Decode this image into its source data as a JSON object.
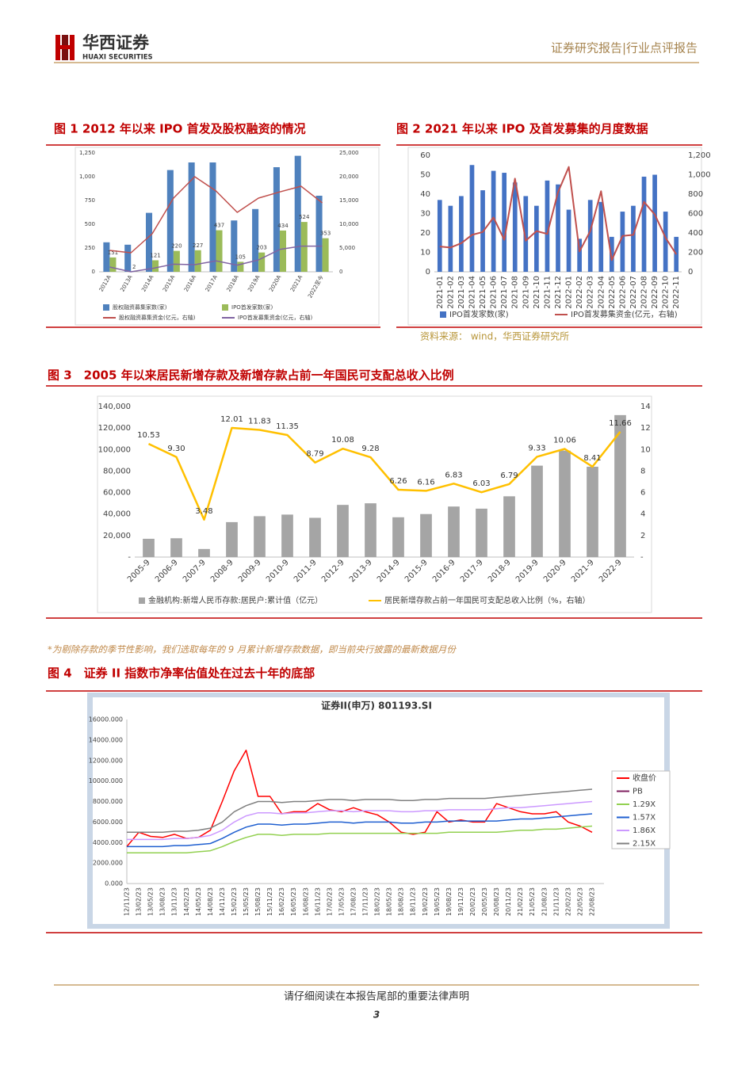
{
  "header": {
    "logo_cn": "华西证券",
    "logo_en": "HUAXI SECURITIES",
    "report_type": "证券研究报告|行业点评报告"
  },
  "chart_data": [
    {
      "type": "bar",
      "title": "图 1 2012 年以来 IPO 首发及股权融资的情况",
      "categories": [
        "2012A",
        "2013A",
        "2014A",
        "2015A",
        "2016A",
        "2017A",
        "2018A",
        "2019A",
        "2020A",
        "2021A",
        "2022至今"
      ],
      "series": [
        {
          "name": "股权融资募集家数(家)",
          "type": "bar",
          "color": "#4f81bd",
          "values": [
            310,
            285,
            620,
            1070,
            1150,
            1150,
            540,
            660,
            1100,
            1220,
            800
          ]
        },
        {
          "name": "IPO首发家数(家)",
          "type": "bar",
          "color": "#9bbb59",
          "data_labels": true,
          "values": [
            151,
            2,
            121,
            220,
            227,
            437,
            105,
            203,
            434,
            524,
            353
          ]
        },
        {
          "name": "股权融资募集资金(亿元，右轴)",
          "type": "line",
          "axis": "y2",
          "color": "#c0504d",
          "values": [
            4500,
            4000,
            8000,
            15500,
            20000,
            17000,
            12500,
            15500,
            16800,
            18000,
            14500
          ]
        },
        {
          "name": "IPO首发募集资金(亿元，右轴)",
          "type": "line",
          "axis": "y2",
          "color": "#8064a2",
          "values": [
            1000,
            0,
            700,
            1600,
            1500,
            2300,
            1400,
            2500,
            4700,
            5400,
            5400
          ]
        }
      ],
      "ylim": [
        0,
        1250
      ],
      "yticks": [
        0,
        250,
        500,
        750,
        {
          "value": 1000,
          "label": "1,000"
        },
        {
          "value": 1250,
          "label": "1,250"
        }
      ],
      "y2lim": [
        0,
        25000
      ],
      "y2ticks": [
        0,
        {
          "value": 5000,
          "label": "5,000"
        },
        {
          "value": 10000,
          "label": "10,000"
        },
        {
          "value": 15000,
          "label": "15,000"
        },
        {
          "value": 20000,
          "label": "20,000"
        },
        {
          "value": 25000,
          "label": "25,000"
        }
      ],
      "grid": false,
      "legend": "bottom"
    },
    {
      "type": "bar",
      "title": "图 2 2021 年以来 IPO 及首发募集的月度数据",
      "categories": [
        "2021-01",
        "2021-02",
        "2021-03",
        "2021-04",
        "2021-05",
        "2021-06",
        "2021-07",
        "2021-08",
        "2021-09",
        "2021-10",
        "2021-11",
        "2021-12",
        "2022-01",
        "2022-02",
        "2022-03",
        "2022-04",
        "2022-05",
        "2022-06",
        "2022-07",
        "2022-08",
        "2022-09",
        "2022-10",
        "2022-11"
      ],
      "series": [
        {
          "name": "IPO首发家数(家)",
          "type": "bar",
          "color": "#4472c4",
          "values": [
            37,
            34,
            39,
            55,
            42,
            52,
            51,
            46,
            39,
            34,
            47,
            45,
            32,
            17,
            37,
            36,
            18,
            31,
            34,
            49,
            50,
            31,
            18
          ]
        },
        {
          "name": "IPO首发募集资金(亿元，右轴)",
          "type": "line",
          "axis": "y2",
          "color": "#c0504d",
          "values": [
            260,
            250,
            295,
            380,
            410,
            560,
            330,
            960,
            320,
            420,
            390,
            820,
            1080,
            210,
            420,
            830,
            120,
            370,
            380,
            720,
            590,
            350,
            180
          ]
        }
      ],
      "ylim": [
        0,
        60
      ],
      "yticks": [
        0,
        10,
        20,
        30,
        40,
        50,
        60
      ],
      "y2lim": [
        0,
        1200
      ],
      "y2ticks": [
        0,
        200,
        400,
        600,
        800,
        {
          "value": 1000,
          "label": "1,000"
        },
        {
          "value": 1200,
          "label": "1,200"
        }
      ],
      "grid": false,
      "legend": "bottom"
    },
    {
      "type": "bar",
      "title": "图 3　2005 年以来居民新增存款及新增存款占前一年国民可支配总收入比例",
      "categories": [
        "2005-9",
        "2006-9",
        "2007-9",
        "2008-9",
        "2009-9",
        "2010-9",
        "2011-9",
        "2012-9",
        "2013-9",
        "2014-9",
        "2015-9",
        "2016-9",
        "2017-9",
        "2018-9",
        "2019-9",
        "2020-9",
        "2021-9",
        "2022-9"
      ],
      "series": [
        {
          "name": "金融机构:新增人民币存款:居民户:累计值（亿元）",
          "type": "bar",
          "color": "#a5a5a5",
          "values": [
            17000,
            17500,
            7500,
            32500,
            38000,
            39500,
            36500,
            48500,
            50000,
            37000,
            40000,
            47000,
            45000,
            56500,
            85000,
            99000,
            84000,
            132000
          ]
        },
        {
          "name": "居民新增存款占前一年国民可支配总收入比例（%，右轴）",
          "type": "line",
          "axis": "y2",
          "color": "#ffc000",
          "data_labels": true,
          "values": [
            10.53,
            9.3,
            3.48,
            12.01,
            11.83,
            11.35,
            8.79,
            10.08,
            9.28,
            6.26,
            6.16,
            6.83,
            6.03,
            6.79,
            9.33,
            10.06,
            8.41,
            11.66
          ],
          "value_labels": [
            "10.53",
            "9.30",
            "3.48",
            "12.01",
            "11.83",
            "11.35",
            "8.79",
            "10.08",
            "9.28",
            "6.26",
            "6.16",
            "6.83",
            "6.03",
            "6.79",
            "9.33",
            "10.06",
            "8.41",
            "11.66"
          ]
        }
      ],
      "ylim": [
        0,
        140000
      ],
      "yticks": [
        {
          "value": 0,
          "label": "-"
        },
        {
          "value": 20000,
          "label": "20,000"
        },
        {
          "value": 40000,
          "label": "40,000"
        },
        {
          "value": 60000,
          "label": "60,000"
        },
        {
          "value": 80000,
          "label": "80,000"
        },
        {
          "value": 100000,
          "label": "100,000"
        },
        {
          "value": 120000,
          "label": "120,000"
        },
        {
          "value": 140000,
          "label": "140,000"
        }
      ],
      "y2lim": [
        0,
        14
      ],
      "y2ticks": [
        {
          "value": 0,
          "label": "-"
        },
        2,
        4,
        6,
        8,
        10,
        12,
        14
      ],
      "grid": false,
      "legend": "bottom"
    },
    {
      "type": "line",
      "title": "图 4　证券 II 指数市净率估值处在过去十年的底部",
      "chart_title": "证券II(申万) 801193.SI",
      "categories": [
        "12/11/23",
        "13/02/23",
        "13/05/23",
        "13/08/23",
        "13/11/23",
        "14/02/23",
        "14/05/23",
        "14/08/23",
        "14/11/23",
        "15/02/23",
        "15/05/23",
        "15/08/23",
        "15/11/23",
        "16/02/23",
        "16/05/23",
        "16/08/23",
        "16/11/23",
        "17/02/23",
        "17/05/23",
        "17/08/23",
        "17/11/23",
        "18/02/23",
        "18/05/23",
        "18/08/23",
        "18/11/23",
        "19/02/23",
        "19/05/23",
        "19/08/23",
        "19/11/23",
        "20/02/23",
        "20/05/23",
        "20/08/23",
        "20/11/23",
        "21/02/23",
        "21/05/23",
        "21/08/23",
        "21/11/23",
        "22/02/23",
        "22/05/23",
        "22/08/23"
      ],
      "series": [
        {
          "name": "收盘价",
          "type": "line",
          "color": "#ff0000",
          "values": [
            3600,
            5000,
            4600,
            4500,
            4800,
            4400,
            4500,
            5200,
            8000,
            11000,
            13000,
            8500,
            8500,
            6800,
            7000,
            7000,
            7800,
            7200,
            7000,
            7400,
            7000,
            6700,
            6000,
            5000,
            4800,
            5000,
            7000,
            6000,
            6200,
            6000,
            6000,
            7800,
            7400,
            7000,
            6800,
            6800,
            7000,
            6000,
            5600,
            5000
          ]
        },
        {
          "name": "PB",
          "type": "line",
          "color": "#7f1f5f",
          "values": [
            null,
            null,
            null,
            null,
            null,
            null,
            null,
            null,
            null,
            null,
            null,
            null,
            null,
            null,
            null,
            null,
            null,
            null,
            null,
            null,
            null,
            null,
            null,
            null,
            null,
            null,
            null,
            null,
            null,
            null,
            null,
            null,
            null,
            null,
            null,
            null,
            null,
            null,
            null,
            null
          ]
        },
        {
          "name": "1.29X",
          "type": "line",
          "color": "#92d050",
          "values": [
            3000,
            3000,
            3000,
            3000,
            3000,
            3000,
            3100,
            3200,
            3600,
            4100,
            4500,
            4800,
            4800,
            4700,
            4800,
            4800,
            4800,
            4900,
            4900,
            4900,
            4900,
            4900,
            4900,
            4900,
            4900,
            4900,
            4900,
            5000,
            5000,
            5000,
            5000,
            5000,
            5100,
            5200,
            5200,
            5300,
            5300,
            5400,
            5500,
            5600
          ]
        },
        {
          "name": "1.57X",
          "type": "line",
          "color": "#1f5fd0",
          "values": [
            3600,
            3600,
            3600,
            3600,
            3700,
            3700,
            3800,
            3900,
            4400,
            5000,
            5500,
            5800,
            5800,
            5700,
            5800,
            5800,
            5900,
            6000,
            6000,
            5900,
            6000,
            6000,
            6000,
            5900,
            5900,
            6000,
            6000,
            6100,
            6100,
            6100,
            6100,
            6100,
            6200,
            6300,
            6300,
            6400,
            6500,
            6600,
            6700,
            6800
          ]
        },
        {
          "name": "1.86X",
          "type": "line",
          "color": "#cc99ff",
          "values": [
            4300,
            4300,
            4300,
            4300,
            4400,
            4400,
            4500,
            4700,
            5200,
            6000,
            6600,
            6900,
            6900,
            6800,
            6900,
            6900,
            7000,
            7100,
            7100,
            7000,
            7100,
            7100,
            7100,
            7000,
            7000,
            7100,
            7100,
            7200,
            7200,
            7200,
            7200,
            7300,
            7400,
            7400,
            7500,
            7600,
            7700,
            7800,
            7900,
            8000
          ]
        },
        {
          "name": "2.15X",
          "type": "line",
          "color": "#808080",
          "values": [
            5000,
            5000,
            5000,
            5000,
            5100,
            5100,
            5200,
            5400,
            6000,
            7000,
            7600,
            8000,
            8000,
            7900,
            8000,
            8000,
            8100,
            8200,
            8200,
            8100,
            8200,
            8200,
            8200,
            8100,
            8100,
            8200,
            8200,
            8300,
            8300,
            8300,
            8300,
            8400,
            8500,
            8600,
            8700,
            8800,
            8900,
            9000,
            9100,
            9200
          ]
        }
      ],
      "ylim": [
        0,
        16000
      ],
      "yticks": [
        {
          "value": 0,
          "label": "0.000"
        },
        {
          "value": 2000,
          "label": "2000.000"
        },
        {
          "value": 4000,
          "label": "4000.000"
        },
        {
          "value": 6000,
          "label": "6000.000"
        },
        {
          "value": 8000,
          "label": "8000.000"
        },
        {
          "value": 10000,
          "label": "10000.000"
        },
        {
          "value": 12000,
          "label": "12000.000"
        },
        {
          "value": 14000,
          "label": "14000.000"
        },
        {
          "value": 16000,
          "label": "16000.000"
        }
      ],
      "grid": false,
      "legend": "right"
    }
  ],
  "source": "资料来源： wind，华西证券研究所",
  "footnote": "*为剔除存款的季节性影响，我们选取每年的 9 月累计新增存款数据，即当前央行披露的最新数据月份",
  "footer": {
    "disclaimer": "请仔细阅读在本报告尾部的重要法律声明",
    "page": "3"
  }
}
